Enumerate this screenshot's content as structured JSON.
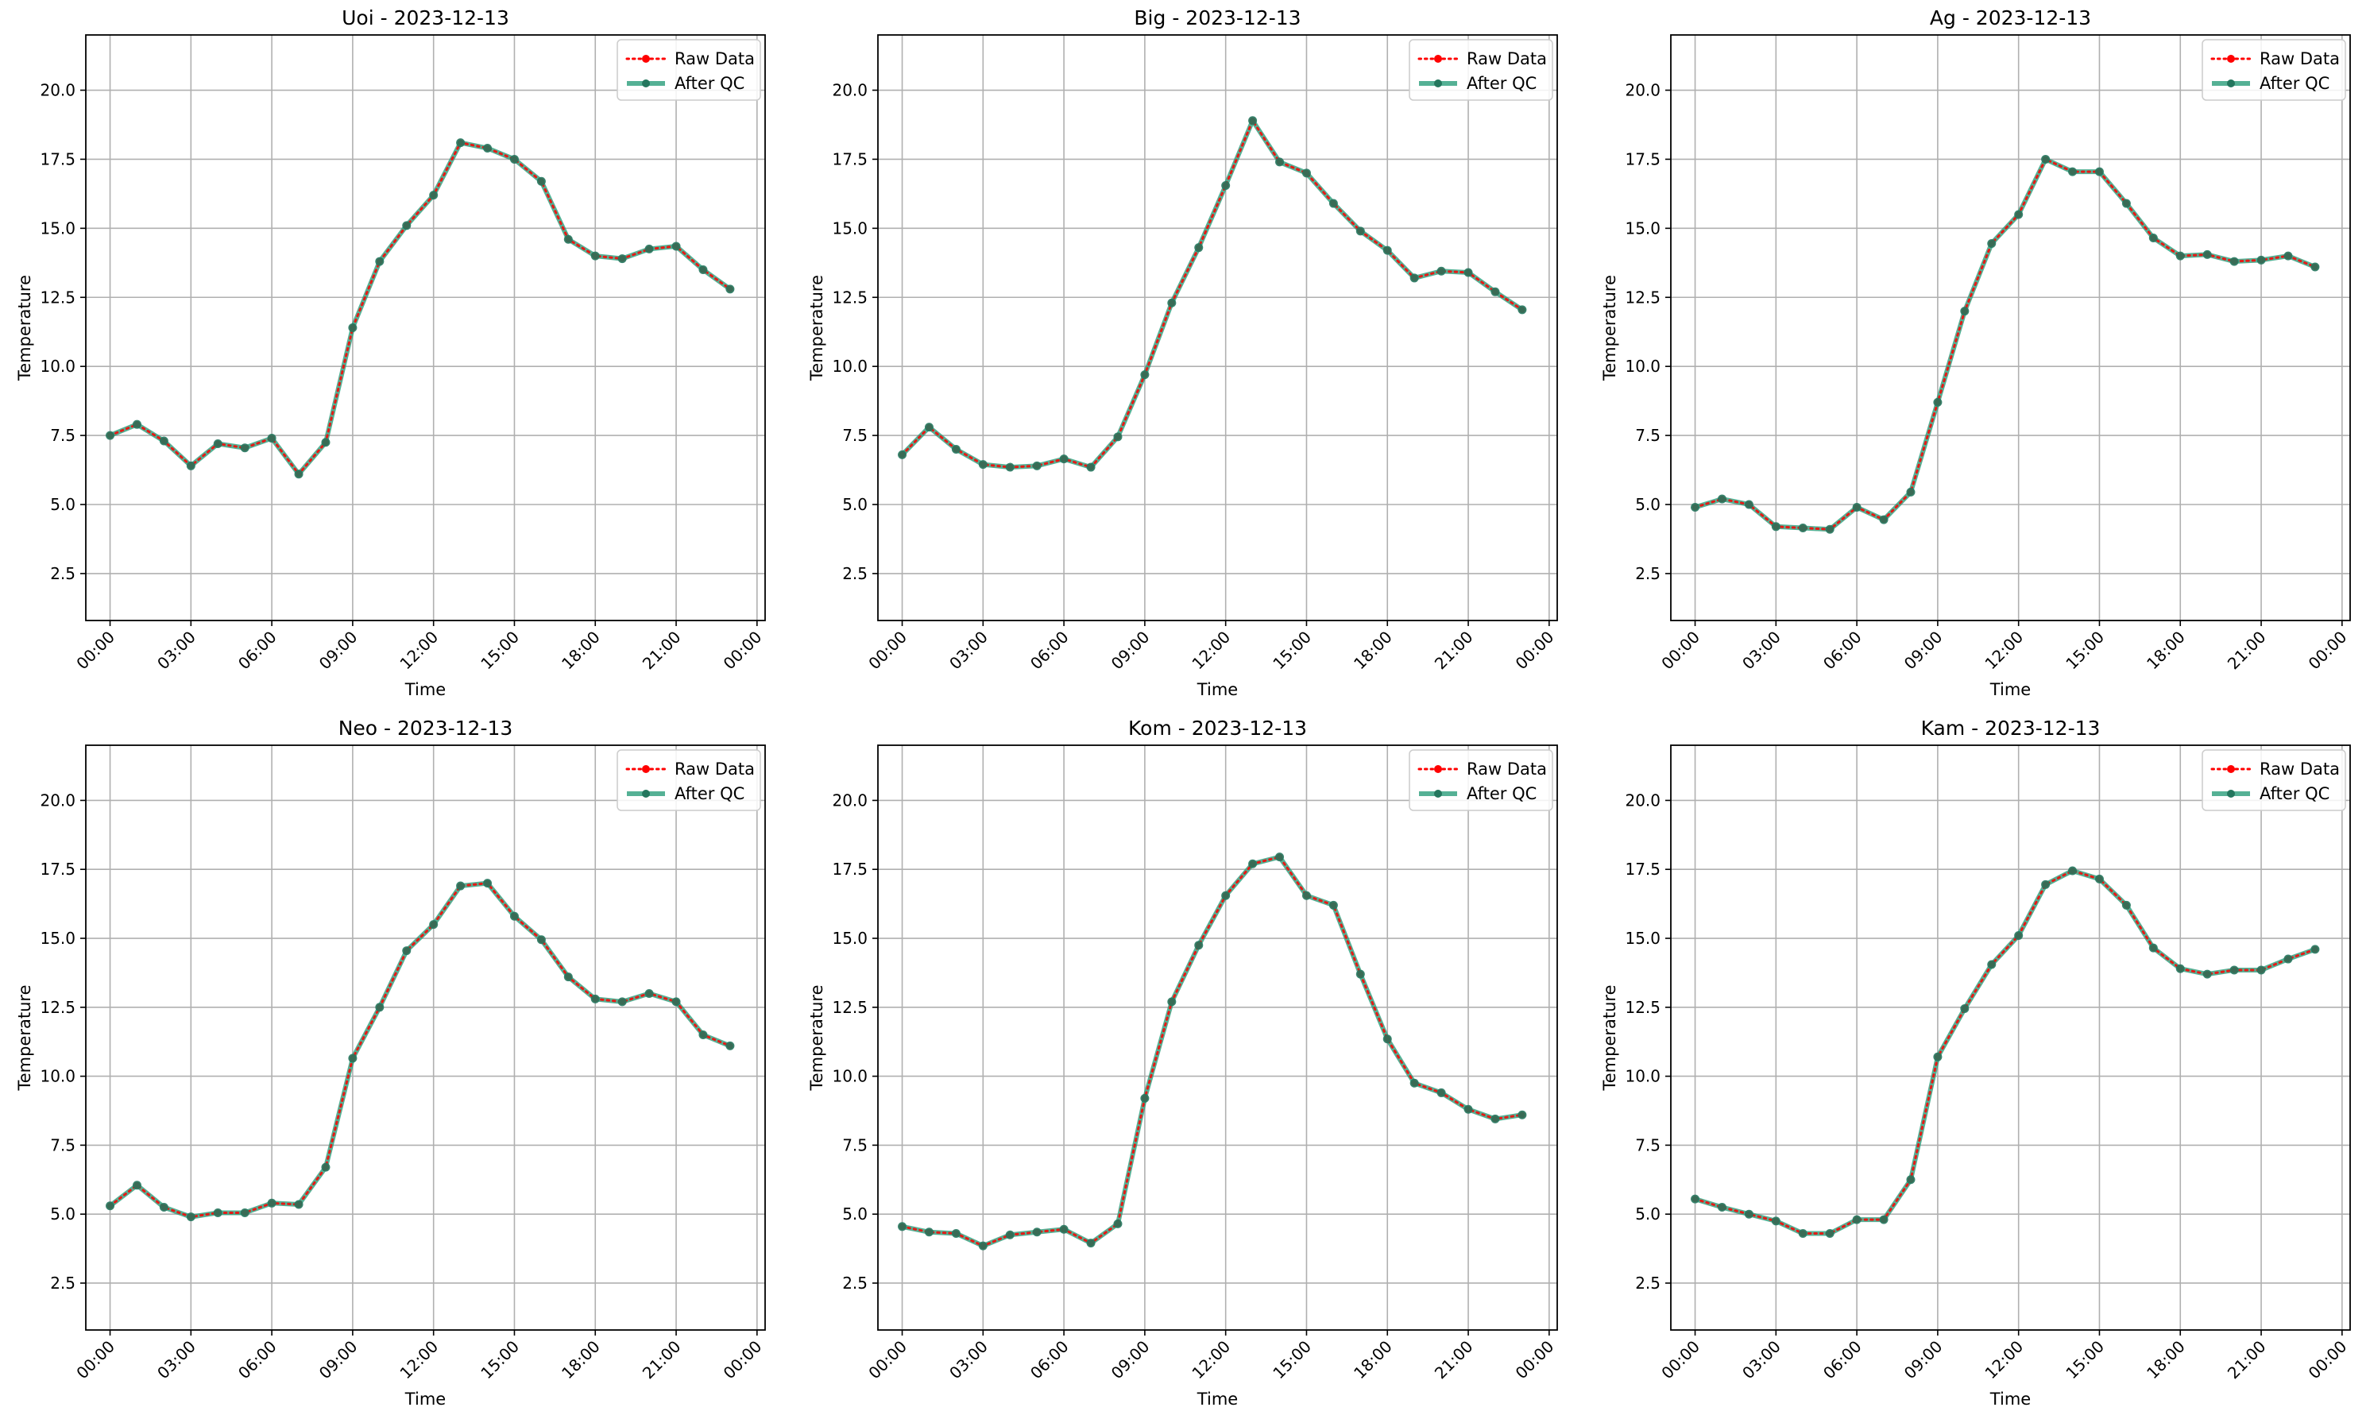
{
  "figure": {
    "colors": {
      "raw": "#ff0000",
      "qc_line": "#2a9d7a",
      "qc_marker": "#24775e",
      "grid": "#b0b0b0",
      "axes": "#000000"
    }
  },
  "chart_data": [
    {
      "type": "line",
      "title": "Uoi - 2023-12-13",
      "xlabel": "Time",
      "ylabel": "Temperature",
      "x": [
        "00:00",
        "01:00",
        "02:00",
        "03:00",
        "04:00",
        "05:00",
        "06:00",
        "07:00",
        "08:00",
        "09:00",
        "10:00",
        "11:00",
        "12:00",
        "13:00",
        "14:00",
        "15:00",
        "16:00",
        "17:00",
        "18:00",
        "19:00",
        "20:00",
        "21:00",
        "22:00",
        "23:00"
      ],
      "x_ticks": [
        "00:00",
        "03:00",
        "06:00",
        "09:00",
        "12:00",
        "15:00",
        "18:00",
        "21:00",
        "00:00"
      ],
      "y_ticks": [
        "2.5",
        "5.0",
        "7.5",
        "10.0",
        "12.5",
        "15.0",
        "17.5",
        "20.0"
      ],
      "ylim": [
        0.8,
        22.0
      ],
      "grid": true,
      "legend_position": "top-right",
      "series": [
        {
          "name": "Raw Data",
          "style": "dotted",
          "color": "#ff0000",
          "values": [
            7.5,
            7.9,
            7.3,
            6.4,
            7.2,
            7.05,
            7.4,
            6.1,
            7.25,
            11.4,
            13.8,
            15.1,
            16.2,
            18.1,
            17.9,
            17.5,
            16.7,
            14.6,
            14.0,
            13.9,
            14.25,
            14.35,
            13.5,
            12.8
          ]
        },
        {
          "name": "After QC",
          "style": "solid",
          "color": "#2a9d7a",
          "values": [
            7.5,
            7.9,
            7.3,
            6.4,
            7.2,
            7.05,
            7.4,
            6.1,
            7.25,
            11.4,
            13.8,
            15.1,
            16.2,
            18.1,
            17.9,
            17.5,
            16.7,
            14.6,
            14.0,
            13.9,
            14.25,
            14.35,
            13.5,
            12.8
          ]
        }
      ]
    },
    {
      "type": "line",
      "title": "Big - 2023-12-13",
      "xlabel": "Time",
      "ylabel": "Temperature",
      "x": [
        "00:00",
        "01:00",
        "02:00",
        "03:00",
        "04:00",
        "05:00",
        "06:00",
        "07:00",
        "08:00",
        "09:00",
        "10:00",
        "11:00",
        "12:00",
        "13:00",
        "14:00",
        "15:00",
        "16:00",
        "17:00",
        "18:00",
        "19:00",
        "20:00",
        "21:00",
        "22:00",
        "23:00"
      ],
      "x_ticks": [
        "00:00",
        "03:00",
        "06:00",
        "09:00",
        "12:00",
        "15:00",
        "18:00",
        "21:00",
        "00:00"
      ],
      "y_ticks": [
        "2.5",
        "5.0",
        "7.5",
        "10.0",
        "12.5",
        "15.0",
        "17.5",
        "20.0"
      ],
      "ylim": [
        0.8,
        22.0
      ],
      "grid": true,
      "legend_position": "top-right",
      "series": [
        {
          "name": "Raw Data",
          "style": "dotted",
          "color": "#ff0000",
          "values": [
            6.8,
            7.8,
            7.0,
            6.45,
            6.35,
            6.4,
            6.65,
            6.35,
            7.45,
            9.7,
            12.3,
            14.3,
            16.55,
            18.9,
            17.4,
            17.0,
            15.9,
            14.9,
            14.2,
            13.2,
            13.45,
            13.4,
            12.7,
            12.05
          ]
        },
        {
          "name": "After QC",
          "style": "solid",
          "color": "#2a9d7a",
          "values": [
            6.8,
            7.8,
            7.0,
            6.45,
            6.35,
            6.4,
            6.65,
            6.35,
            7.45,
            9.7,
            12.3,
            14.3,
            16.55,
            18.9,
            17.4,
            17.0,
            15.9,
            14.9,
            14.2,
            13.2,
            13.45,
            13.4,
            12.7,
            12.05
          ]
        }
      ]
    },
    {
      "type": "line",
      "title": "Ag - 2023-12-13",
      "xlabel": "Time",
      "ylabel": "Temperature",
      "x": [
        "00:00",
        "01:00",
        "02:00",
        "03:00",
        "04:00",
        "05:00",
        "06:00",
        "07:00",
        "08:00",
        "09:00",
        "10:00",
        "11:00",
        "12:00",
        "13:00",
        "14:00",
        "15:00",
        "16:00",
        "17:00",
        "18:00",
        "19:00",
        "20:00",
        "21:00",
        "22:00",
        "23:00"
      ],
      "x_ticks": [
        "00:00",
        "03:00",
        "06:00",
        "09:00",
        "12:00",
        "15:00",
        "18:00",
        "21:00",
        "00:00"
      ],
      "y_ticks": [
        "2.5",
        "5.0",
        "7.5",
        "10.0",
        "12.5",
        "15.0",
        "17.5",
        "20.0"
      ],
      "ylim": [
        0.8,
        22.0
      ],
      "grid": true,
      "legend_position": "top-right",
      "series": [
        {
          "name": "Raw Data",
          "style": "dotted",
          "color": "#ff0000",
          "values": [
            4.9,
            5.2,
            5.0,
            4.2,
            4.15,
            4.1,
            4.9,
            4.45,
            5.45,
            8.7,
            12.0,
            14.45,
            15.5,
            17.5,
            17.05,
            17.05,
            15.9,
            14.65,
            14.0,
            14.05,
            13.8,
            13.85,
            14.0,
            13.6
          ]
        },
        {
          "name": "After QC",
          "style": "solid",
          "color": "#2a9d7a",
          "values": [
            4.9,
            5.2,
            5.0,
            4.2,
            4.15,
            4.1,
            4.9,
            4.45,
            5.45,
            8.7,
            12.0,
            14.45,
            15.5,
            17.5,
            17.05,
            17.05,
            15.9,
            14.65,
            14.0,
            14.05,
            13.8,
            13.85,
            14.0,
            13.6
          ]
        }
      ]
    },
    {
      "type": "line",
      "title": "Neo - 2023-12-13",
      "xlabel": "Time",
      "ylabel": "Temperature",
      "x": [
        "00:00",
        "01:00",
        "02:00",
        "03:00",
        "04:00",
        "05:00",
        "06:00",
        "07:00",
        "08:00",
        "09:00",
        "10:00",
        "11:00",
        "12:00",
        "13:00",
        "14:00",
        "15:00",
        "16:00",
        "17:00",
        "18:00",
        "19:00",
        "20:00",
        "21:00",
        "22:00",
        "23:00"
      ],
      "x_ticks": [
        "00:00",
        "03:00",
        "06:00",
        "09:00",
        "12:00",
        "15:00",
        "18:00",
        "21:00",
        "00:00"
      ],
      "y_ticks": [
        "2.5",
        "5.0",
        "7.5",
        "10.0",
        "12.5",
        "15.0",
        "17.5",
        "20.0"
      ],
      "ylim": [
        0.8,
        22.0
      ],
      "grid": true,
      "legend_position": "top-right",
      "series": [
        {
          "name": "Raw Data",
          "style": "dotted",
          "color": "#ff0000",
          "values": [
            5.3,
            6.05,
            5.25,
            4.9,
            5.05,
            5.05,
            5.4,
            5.35,
            6.7,
            10.65,
            12.5,
            14.55,
            15.5,
            16.9,
            17.0,
            15.8,
            14.95,
            13.6,
            12.8,
            12.7,
            13.0,
            12.7,
            11.5,
            11.1
          ]
        },
        {
          "name": "After QC",
          "style": "solid",
          "color": "#2a9d7a",
          "values": [
            5.3,
            6.05,
            5.25,
            4.9,
            5.05,
            5.05,
            5.4,
            5.35,
            6.7,
            10.65,
            12.5,
            14.55,
            15.5,
            16.9,
            17.0,
            15.8,
            14.95,
            13.6,
            12.8,
            12.7,
            13.0,
            12.7,
            11.5,
            11.1
          ]
        }
      ]
    },
    {
      "type": "line",
      "title": "Kom - 2023-12-13",
      "xlabel": "Time",
      "ylabel": "Temperature",
      "x": [
        "00:00",
        "01:00",
        "02:00",
        "03:00",
        "04:00",
        "05:00",
        "06:00",
        "07:00",
        "08:00",
        "09:00",
        "10:00",
        "11:00",
        "12:00",
        "13:00",
        "14:00",
        "15:00",
        "16:00",
        "17:00",
        "18:00",
        "19:00",
        "20:00",
        "21:00",
        "22:00",
        "23:00"
      ],
      "x_ticks": [
        "00:00",
        "03:00",
        "06:00",
        "09:00",
        "12:00",
        "15:00",
        "18:00",
        "21:00",
        "00:00"
      ],
      "y_ticks": [
        "2.5",
        "5.0",
        "7.5",
        "10.0",
        "12.5",
        "15.0",
        "17.5",
        "20.0"
      ],
      "ylim": [
        0.8,
        22.0
      ],
      "grid": true,
      "legend_position": "top-right",
      "series": [
        {
          "name": "Raw Data",
          "style": "dotted",
          "color": "#ff0000",
          "values": [
            4.55,
            4.35,
            4.3,
            3.85,
            4.25,
            4.35,
            4.45,
            3.95,
            4.65,
            9.2,
            12.7,
            14.75,
            16.55,
            17.7,
            17.95,
            16.55,
            16.2,
            13.7,
            11.35,
            9.75,
            9.4,
            8.8,
            8.45,
            8.6
          ]
        },
        {
          "name": "After QC",
          "style": "solid",
          "color": "#2a9d7a",
          "values": [
            4.55,
            4.35,
            4.3,
            3.85,
            4.25,
            4.35,
            4.45,
            3.95,
            4.65,
            9.2,
            12.7,
            14.75,
            16.55,
            17.7,
            17.95,
            16.55,
            16.2,
            13.7,
            11.35,
            9.75,
            9.4,
            8.8,
            8.45,
            8.6
          ]
        }
      ]
    },
    {
      "type": "line",
      "title": "Kam - 2023-12-13",
      "xlabel": "Time",
      "ylabel": "Temperature",
      "x": [
        "00:00",
        "01:00",
        "02:00",
        "03:00",
        "04:00",
        "05:00",
        "06:00",
        "07:00",
        "08:00",
        "09:00",
        "10:00",
        "11:00",
        "12:00",
        "13:00",
        "14:00",
        "15:00",
        "16:00",
        "17:00",
        "18:00",
        "19:00",
        "20:00",
        "21:00",
        "22:00",
        "23:00"
      ],
      "x_ticks": [
        "00:00",
        "03:00",
        "06:00",
        "09:00",
        "12:00",
        "15:00",
        "18:00",
        "21:00",
        "00:00"
      ],
      "y_ticks": [
        "2.5",
        "5.0",
        "7.5",
        "10.0",
        "12.5",
        "15.0",
        "17.5",
        "20.0"
      ],
      "ylim": [
        0.8,
        22.0
      ],
      "grid": true,
      "legend_position": "top-right",
      "series": [
        {
          "name": "Raw Data",
          "style": "dotted",
          "color": "#ff0000",
          "values": [
            5.55,
            5.25,
            5.0,
            4.75,
            4.3,
            4.3,
            4.8,
            4.8,
            6.25,
            10.7,
            12.45,
            14.05,
            15.1,
            16.95,
            17.45,
            17.15,
            16.2,
            14.65,
            13.9,
            13.7,
            13.85,
            13.85,
            14.25,
            14.6
          ]
        },
        {
          "name": "After QC",
          "style": "solid",
          "color": "#2a9d7a",
          "values": [
            5.55,
            5.25,
            5.0,
            4.75,
            4.3,
            4.3,
            4.8,
            4.8,
            6.25,
            10.7,
            12.45,
            14.05,
            15.1,
            16.95,
            17.45,
            17.15,
            16.2,
            14.65,
            13.9,
            13.7,
            13.85,
            13.85,
            14.25,
            14.6
          ]
        }
      ]
    }
  ]
}
